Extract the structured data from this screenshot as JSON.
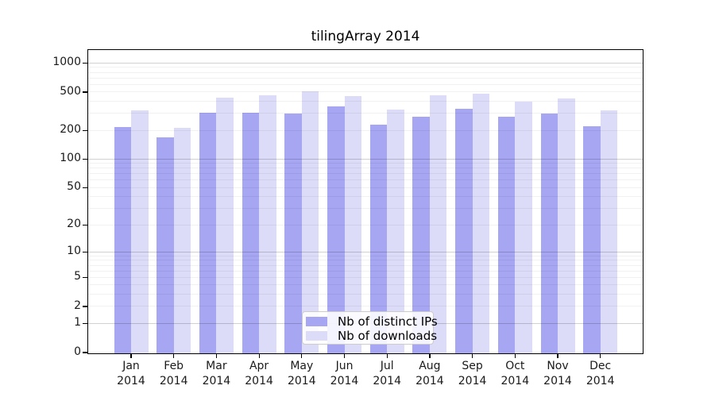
{
  "title": "tilingArray 2014",
  "colors": {
    "bar_distinct_ips": "#a6a6f2",
    "bar_downloads": "#dcdcf8",
    "grid_major": "#d1d1d1",
    "grid_minor": "#f1f1f1",
    "axis": "#000000"
  },
  "chart_data": {
    "type": "bar",
    "title": "tilingArray 2014",
    "categories": [
      "Jan 2014",
      "Feb 2014",
      "Mar 2014",
      "Apr 2014",
      "May 2014",
      "Jun 2014",
      "Jul 2014",
      "Aug 2014",
      "Sep 2014",
      "Oct 2014",
      "Nov 2014",
      "Dec 2014"
    ],
    "series": [
      {
        "name": "Nb of distinct IPs",
        "color": "#a6a6f2",
        "values": [
          213,
          168,
          303,
          303,
          297,
          348,
          225,
          275,
          330,
          275,
          297,
          216
        ]
      },
      {
        "name": "Nb of downloads",
        "color": "#dcdcf8",
        "values": [
          317,
          210,
          434,
          456,
          503,
          451,
          326,
          456,
          472,
          390,
          421,
          316
        ]
      }
    ],
    "xlabel": "",
    "ylabel": "",
    "y_scale": "log10(value+1)",
    "y_ticks": [
      0,
      1,
      2,
      5,
      10,
      20,
      50,
      100,
      200,
      500,
      1000
    ],
    "ylim": [
      0,
      1380
    ],
    "grid": "horizontal",
    "grid_major_at": [
      1,
      10,
      100,
      1000
    ],
    "legend_position": "inside-bottom-center"
  }
}
